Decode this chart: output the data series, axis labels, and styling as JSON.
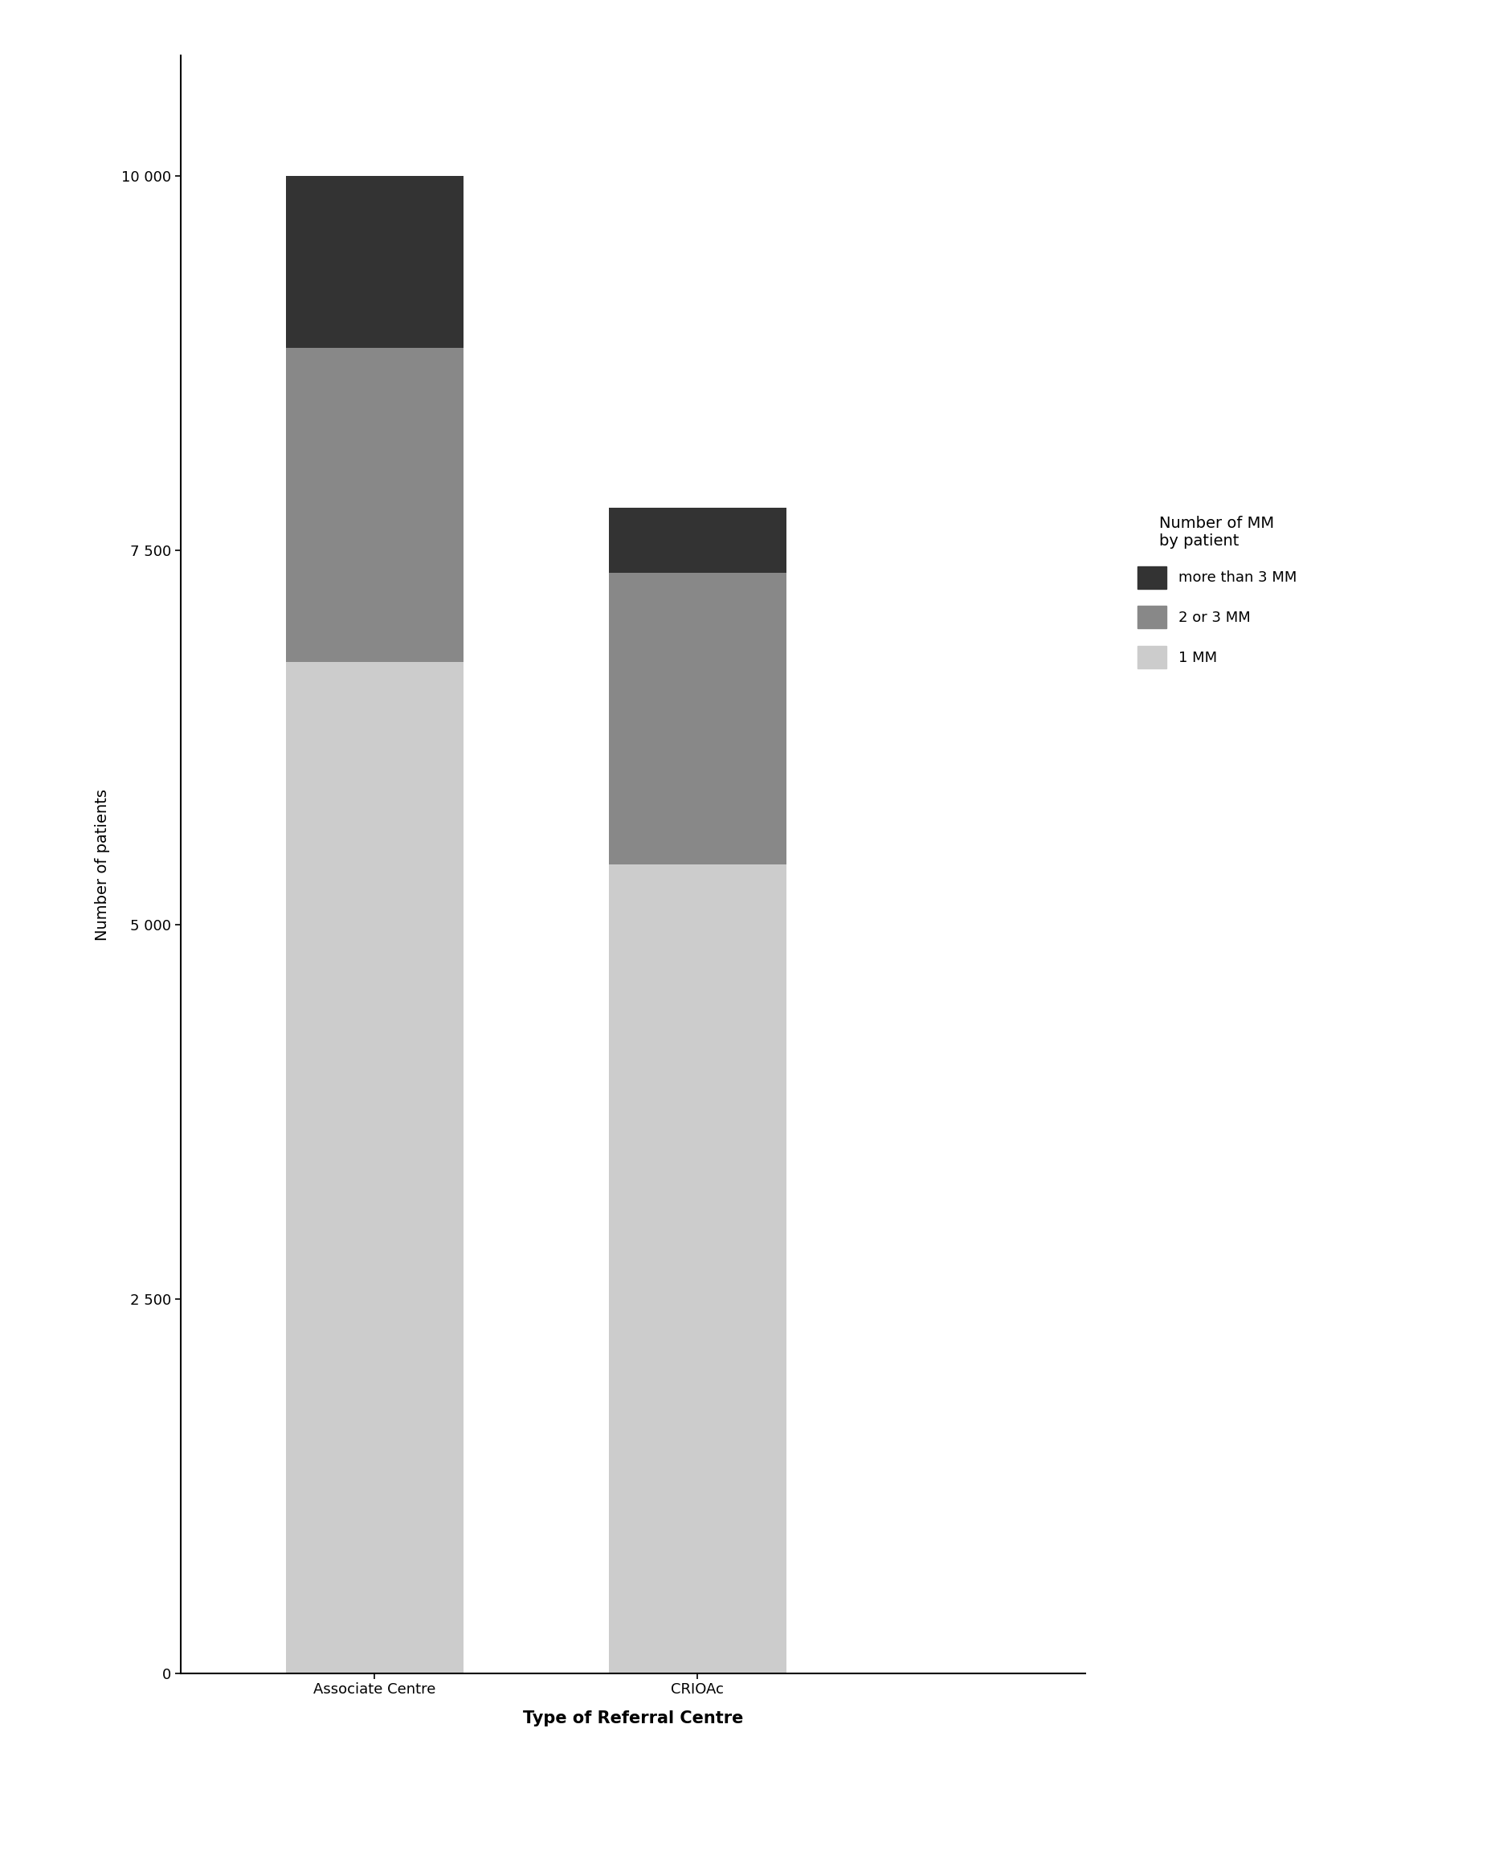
{
  "categories": [
    "Associate Centre",
    "CRIOAc"
  ],
  "values_1mm": [
    6750,
    5400
  ],
  "values_2or3mm": [
    2100,
    1950
  ],
  "values_more3mm": [
    1150,
    430
  ],
  "color_1mm": "#cccccc",
  "color_2or3mm": "#888888",
  "color_more3mm": "#333333",
  "legend_title": "Number of MM\nby patient",
  "legend_labels": [
    "more than 3 MM",
    "2 or 3 MM",
    "1 MM"
  ],
  "xlabel": "Type of Referral Centre",
  "ylabel": "Number of patients",
  "yticks": [
    0,
    2500,
    5000,
    7500,
    10000
  ],
  "ytick_labels": [
    "0",
    "2 500",
    "5 000",
    "7 500",
    "10 000"
  ],
  "ylim": [
    0,
    10800
  ],
  "bar_width": 0.55,
  "figure_width": 18.76,
  "figure_height": 23.14,
  "background_color": "#ffffff",
  "xlabel_fontsize": 15,
  "ylabel_fontsize": 14,
  "tick_fontsize": 13,
  "legend_fontsize": 13,
  "legend_title_fontsize": 14
}
